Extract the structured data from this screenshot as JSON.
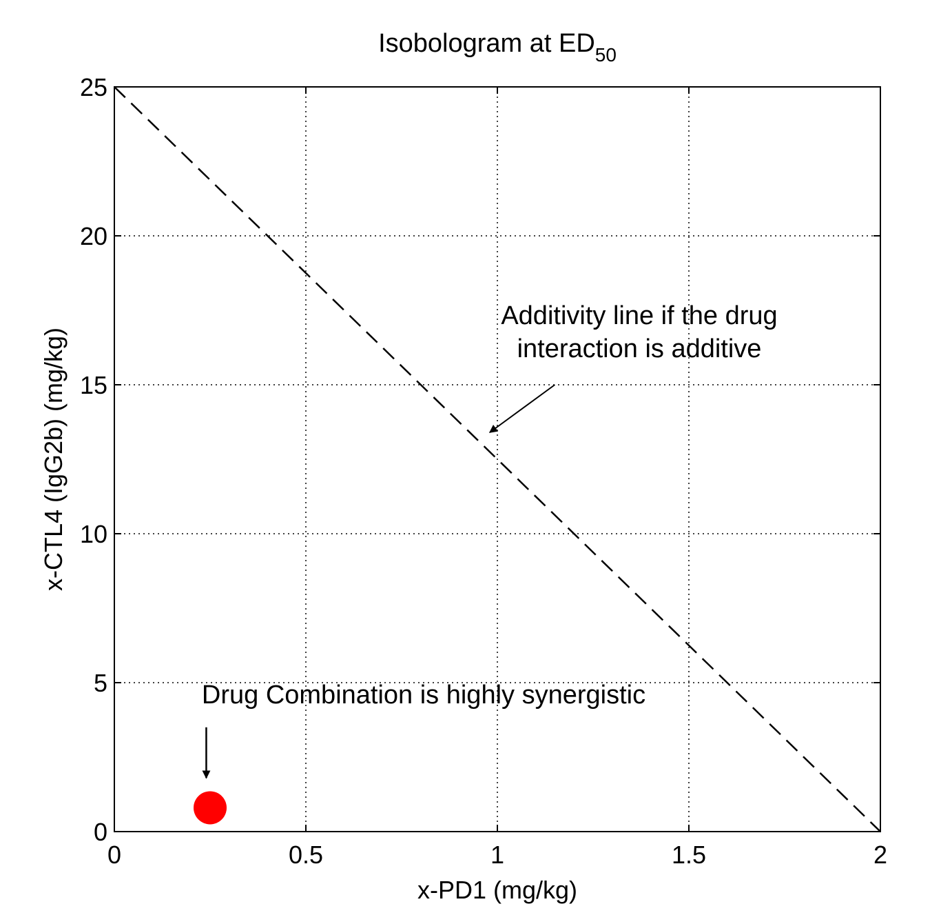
{
  "chart_data": {
    "type": "scatter",
    "title": "Isobologram at ED",
    "title_subscript": "50",
    "xlabel": "x-PD1 (mg/kg)",
    "ylabel": "x-CTL4 (IgG2b) (mg/kg)",
    "xlim": [
      0,
      2
    ],
    "ylim": [
      0,
      25
    ],
    "xticks": [
      0,
      0.5,
      1,
      1.5,
      2
    ],
    "xtick_labels": [
      "0",
      "0.5",
      "1",
      "1.5",
      "2"
    ],
    "yticks": [
      0,
      5,
      10,
      15,
      20,
      25
    ],
    "ytick_labels": [
      "0",
      "5",
      "10",
      "15",
      "20",
      "25"
    ],
    "grid": true,
    "series": [
      {
        "style": "dashed-line",
        "color": "#000000",
        "x": [
          0,
          2
        ],
        "y": [
          25,
          0
        ]
      },
      {
        "style": "marker",
        "color": "#ff0000",
        "x": [
          0.25
        ],
        "y": [
          0.8
        ]
      }
    ],
    "annotations": [
      {
        "lines": [
          "Additivity line if the drug",
          "interaction is additive"
        ],
        "arrow_from": [
          1.15,
          15
        ],
        "arrow_to": [
          0.98,
          13.4
        ]
      },
      {
        "lines": [
          "Drug Combination is highly synergistic"
        ],
        "arrow_from": [
          0.24,
          3.5
        ],
        "arrow_to": [
          0.24,
          1.8
        ]
      }
    ]
  }
}
